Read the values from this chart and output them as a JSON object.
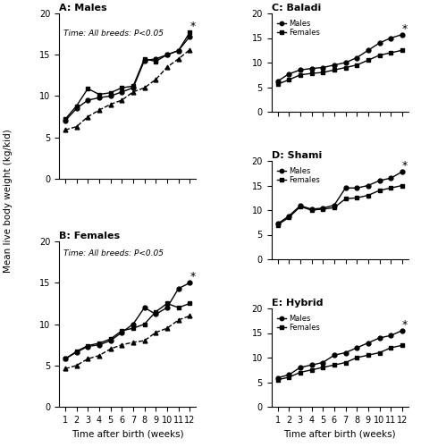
{
  "weeks": [
    1,
    2,
    3,
    4,
    5,
    6,
    7,
    8,
    9,
    10,
    11,
    12
  ],
  "A_baladi_males": [
    7.0,
    8.5,
    9.5,
    9.8,
    10.0,
    10.5,
    11.0,
    14.3,
    14.5,
    15.0,
    15.5,
    17.2
  ],
  "A_shami_males": [
    7.2,
    8.8,
    10.9,
    10.2,
    10.4,
    11.0,
    11.2,
    14.5,
    14.2,
    15.0,
    15.5,
    17.7
  ],
  "A_hybrid_males": [
    5.9,
    6.3,
    7.5,
    8.3,
    9.0,
    9.5,
    10.5,
    11.0,
    12.0,
    13.5,
    14.5,
    15.6
  ],
  "B_baladi_females": [
    5.8,
    6.6,
    7.3,
    7.5,
    8.0,
    9.0,
    10.0,
    12.0,
    11.2,
    12.0,
    14.3,
    15.0
  ],
  "B_shami_females": [
    5.8,
    6.7,
    7.4,
    7.7,
    8.2,
    9.2,
    9.5,
    10.0,
    11.5,
    12.5,
    12.0,
    12.5
  ],
  "B_hybrid_females": [
    4.6,
    5.0,
    5.8,
    6.2,
    7.0,
    7.5,
    7.8,
    8.0,
    9.0,
    9.5,
    10.5,
    11.0
  ],
  "C_baladi_males": [
    6.2,
    7.7,
    8.5,
    8.8,
    9.0,
    9.5,
    10.0,
    11.0,
    12.5,
    14.0,
    15.0,
    15.7
  ],
  "C_baladi_females": [
    5.6,
    6.5,
    7.5,
    7.8,
    8.0,
    8.5,
    9.0,
    9.5,
    10.5,
    11.5,
    12.0,
    12.5
  ],
  "D_shami_males": [
    7.2,
    8.8,
    10.9,
    10.2,
    10.4,
    11.0,
    14.5,
    14.5,
    15.0,
    16.0,
    16.5,
    17.8
  ],
  "D_shami_females": [
    7.0,
    8.5,
    10.7,
    10.0,
    10.2,
    10.5,
    12.3,
    12.5,
    13.0,
    14.0,
    14.5,
    15.0
  ],
  "E_hybrid_males": [
    5.9,
    6.5,
    8.0,
    8.5,
    9.0,
    10.5,
    11.0,
    12.0,
    13.0,
    14.0,
    14.5,
    15.5
  ],
  "E_hybrid_females": [
    5.5,
    6.0,
    7.0,
    7.5,
    8.0,
    8.5,
    9.0,
    10.0,
    10.5,
    11.0,
    12.0,
    12.5
  ],
  "title_A": "A: Males",
  "title_B": "B: Females",
  "title_C": "C: Baladi",
  "title_D": "D: Shami",
  "title_E": "E: Hybrid",
  "subtitle_A": "Time: All breeds: P<0.05",
  "subtitle_B": "Time: All breeds: P<0.05",
  "ylabel": "Mean live body weight (kg/kid)",
  "xlabel": "Time after birth (weeks)",
  "ylim_AB": [
    0,
    20
  ],
  "ylim_CDE": [
    0,
    20
  ],
  "yticks_AB": [
    0,
    5,
    10,
    15,
    20
  ],
  "yticks_CDE": [
    0,
    5,
    10,
    15,
    20
  ],
  "xticks": [
    1,
    2,
    3,
    4,
    5,
    6,
    7,
    8,
    9,
    10,
    11,
    12
  ]
}
